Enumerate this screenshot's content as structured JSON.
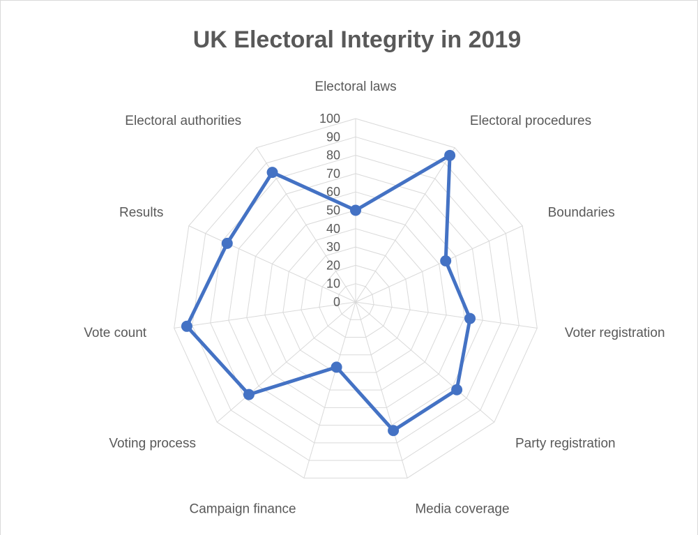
{
  "chart_data": {
    "type": "radar",
    "title": "UK Electoral Integrity in 2019",
    "categories": [
      "Electoral laws",
      "Electoral procedures",
      "Boundaries",
      "Voter registration",
      "Party registration",
      "Media coverage",
      "Campaign finance",
      "Voting process",
      "Vote count",
      "Results",
      "Electoral authorities"
    ],
    "series": [
      {
        "values": [
          50,
          95,
          54,
          63,
          73,
          73,
          37,
          77,
          93,
          77,
          84
        ]
      }
    ],
    "r_range": [
      0,
      100
    ],
    "r_ticks": [
      "0",
      "10",
      "20",
      "30",
      "40",
      "50",
      "60",
      "70",
      "80",
      "90",
      "100"
    ],
    "grid": true,
    "legend": "none",
    "colors": {
      "series": "#4472c4",
      "grid": "#d9d9d9",
      "text": "#595959"
    }
  }
}
